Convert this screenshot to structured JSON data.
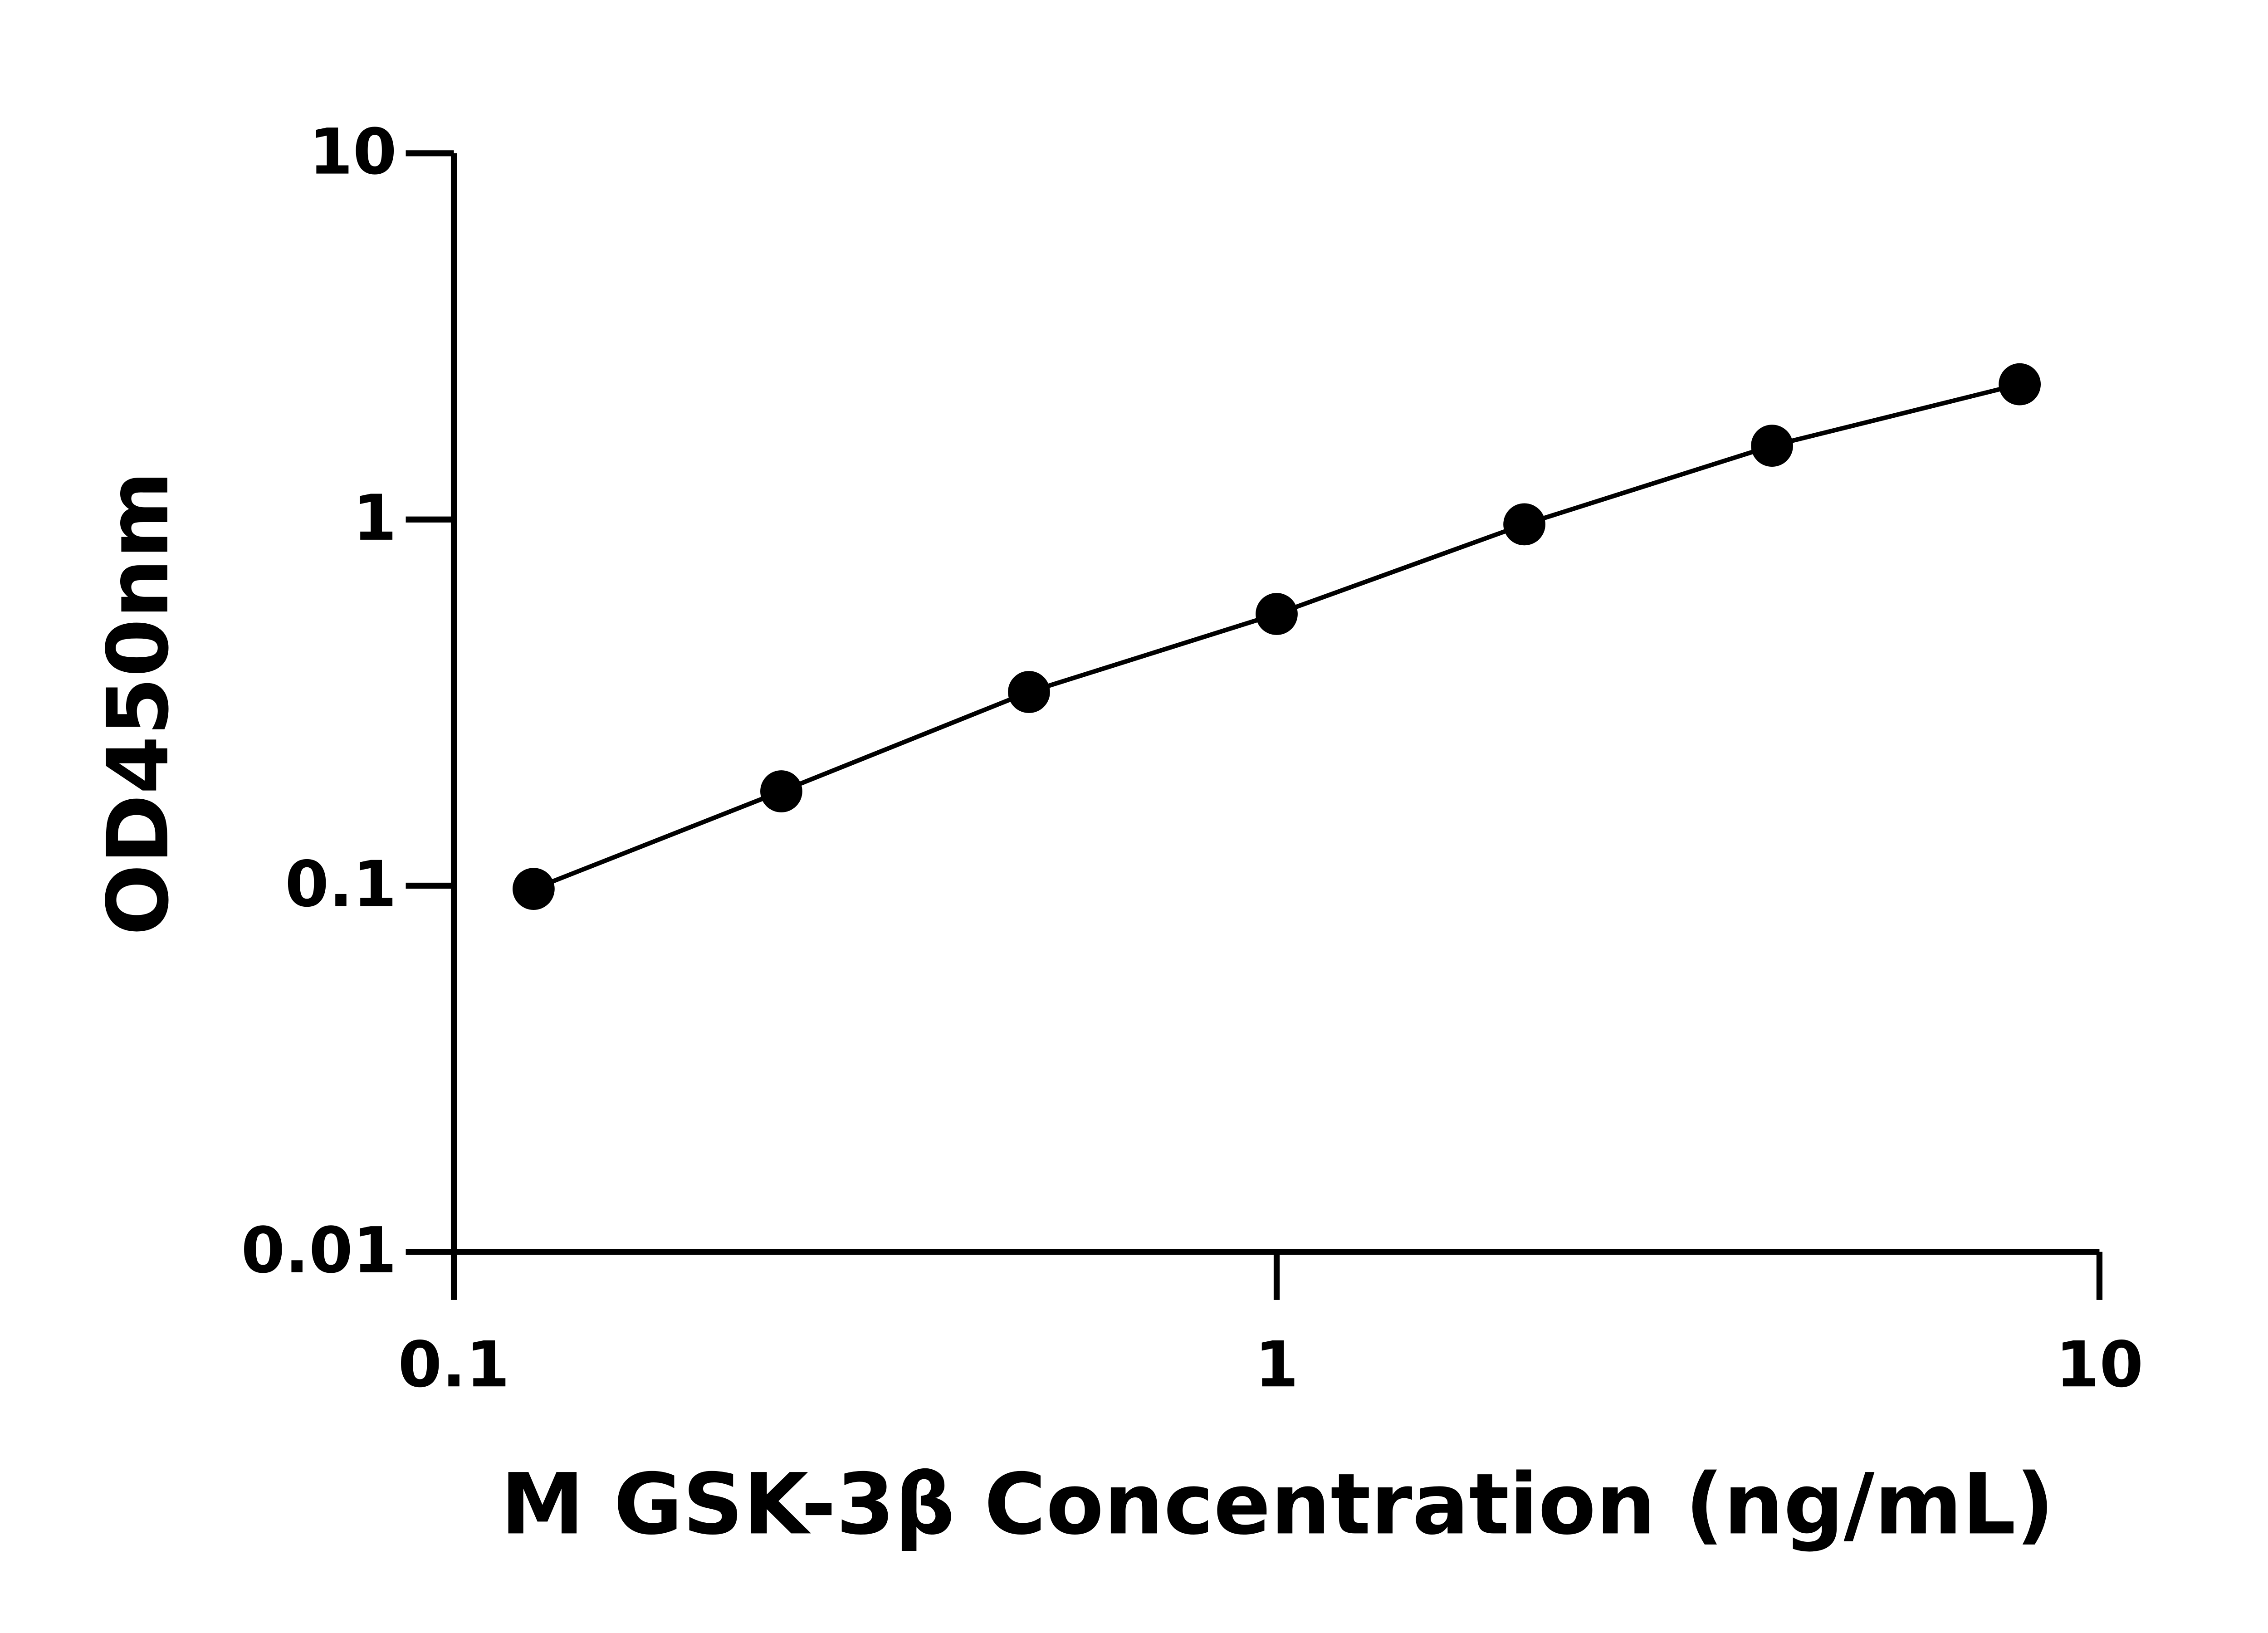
{
  "chart_data": {
    "type": "line",
    "xlabel": "M GSK-3β Concentration (ng/mL)",
    "ylabel": "OD450nm",
    "x": [
      0.125,
      0.25,
      0.5,
      1,
      2,
      4,
      8
    ],
    "series": [
      {
        "color": "#000000",
        "values": [
          0.098,
          0.181,
          0.338,
          0.552,
          0.97,
          1.59,
          2.34
        ]
      }
    ],
    "xscale": "log",
    "yscale": "log",
    "xlim": [
      0.1,
      10
    ],
    "ylim": [
      0.01,
      10
    ],
    "xticks": [
      0.1,
      1,
      10
    ],
    "yticks": [
      0.01,
      0.1,
      1,
      10
    ],
    "markers": true
  }
}
